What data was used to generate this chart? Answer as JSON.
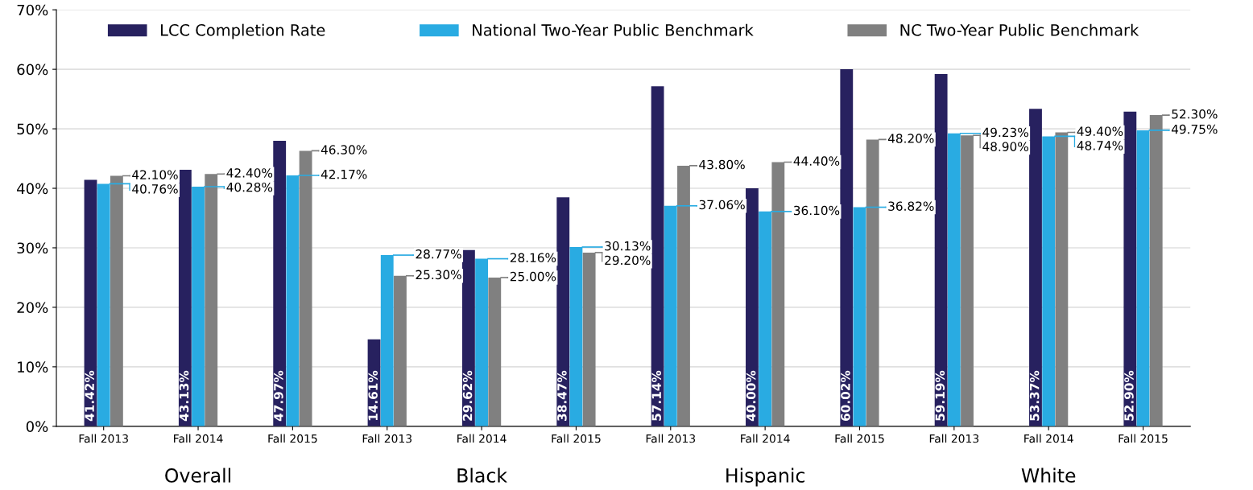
{
  "chart_data": {
    "type": "bar",
    "categories": [
      "Fall 2013",
      "Fall 2014",
      "Fall 2015",
      "Fall 2013",
      "Fall 2014",
      "Fall 2015",
      "Fall 2013",
      "Fall 2014",
      "Fall 2015",
      "Fall 2013",
      "Fall 2014",
      "Fall 2015"
    ],
    "series": [
      {
        "name": "LCC Completion Rate",
        "color": "#27215f",
        "values": [
          41.42,
          43.13,
          47.97,
          14.61,
          29.62,
          38.47,
          57.14,
          40.0,
          60.02,
          59.19,
          53.37,
          52.9
        ],
        "value_labels": [
          "41.42%",
          "43.13%",
          "47.97%",
          "14.61%",
          "29.62%",
          "38.47%",
          "57.14%",
          "40.00%",
          "60.02%",
          "59.19%",
          "53.37%",
          "52.90%"
        ]
      },
      {
        "name": "National Two-Year Public Benchmark",
        "color": "#29abe2",
        "values": [
          40.76,
          40.28,
          42.17,
          28.77,
          28.16,
          30.13,
          37.06,
          36.1,
          36.82,
          49.23,
          48.74,
          49.75
        ],
        "value_labels": [
          "40.76%",
          "40.28%",
          "42.17%",
          "28.77%",
          "28.16%",
          "30.13%",
          "37.06%",
          "36.10%",
          "36.82%",
          "49.23%",
          "48.74%",
          "49.75%"
        ]
      },
      {
        "name": "NC Two-Year Public Benchmark",
        "color": "#808080",
        "values": [
          42.1,
          42.4,
          46.3,
          25.3,
          25.0,
          29.2,
          43.8,
          44.4,
          48.2,
          48.9,
          49.4,
          52.3
        ],
        "value_labels": [
          "42.10%",
          "42.40%",
          "46.30%",
          "25.30%",
          "25.00%",
          "29.20%",
          "43.80%",
          "44.40%",
          "48.20%",
          "48.90%",
          "49.40%",
          "52.30%"
        ]
      }
    ],
    "annotations": [
      "Overall",
      "Black",
      "Hispanic",
      "White"
    ],
    "ylim": [
      0,
      70
    ],
    "yticks": [
      {
        "value": 0,
        "label": "0%"
      },
      {
        "value": 10,
        "label": "10%"
      },
      {
        "value": 20,
        "label": "20%"
      },
      {
        "value": 30,
        "label": "30%"
      },
      {
        "value": 40,
        "label": "40%"
      },
      {
        "value": 50,
        "label": "50%"
      },
      {
        "value": 60,
        "label": "60%"
      },
      {
        "value": 70,
        "label": "70%"
      }
    ],
    "grid": "y",
    "legend": "top"
  }
}
